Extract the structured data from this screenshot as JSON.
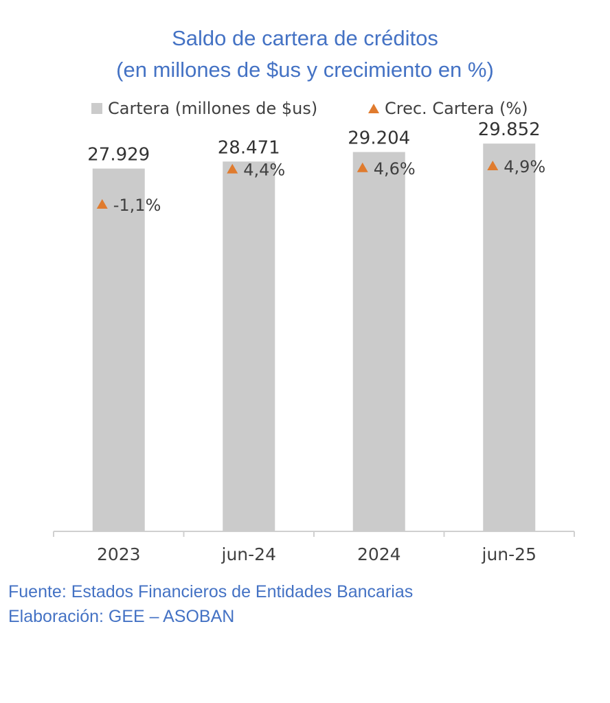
{
  "title_line1": "Saldo de cartera de créditos",
  "title_line2": "(en millones de $us y crecimiento en %)",
  "legend": {
    "bars_label": "Cartera (millones de $us)",
    "markers_label": "Crec. Cartera (%)"
  },
  "colors": {
    "bar": "#cbcbcb",
    "marker": "#e07b2e",
    "title": "#4472c4"
  },
  "chart_data": {
    "type": "bar",
    "categories": [
      "2023",
      "jun-24",
      "2024",
      "jun-25"
    ],
    "series": [
      {
        "name": "Cartera (millones de $us)",
        "values": [
          27929,
          28471,
          29204,
          29852
        ],
        "labels": [
          "27.929",
          "28.471",
          "29.204",
          "29.852"
        ]
      },
      {
        "name": "Crec. Cartera (%)",
        "type": "marker",
        "values": [
          -1.1,
          4.4,
          4.6,
          4.9
        ],
        "labels": [
          "-1,1%",
          "4,4%",
          "4,6%",
          "4,9%"
        ]
      }
    ],
    "ylim": [
      0,
      31000
    ],
    "grid": false,
    "legend_position": "top"
  },
  "footer": {
    "source": "Fuente: Estados Financieros de Entidades Bancarias",
    "author": "Elaboración: GEE – ASOBAN"
  }
}
